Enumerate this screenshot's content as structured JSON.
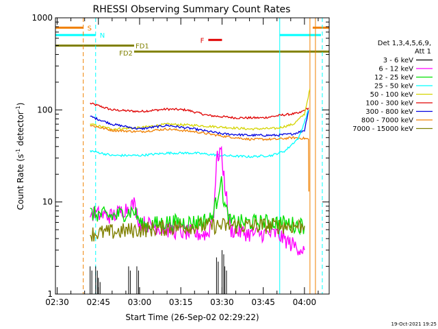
{
  "chart_data": {
    "type": "line",
    "title": "RHESSI Observing Summary Count Rates",
    "xlabel": "Start Time (26-Sep-02 02:29:22)",
    "ylabel_main": "Count Rate (s",
    "ylabel_sup1": "-1",
    "ylabel_mid": " detector",
    "ylabel_sup2": "-1",
    "ylabel_end": ")",
    "yscale": "log",
    "ylim": [
      1,
      1000
    ],
    "xlim_min": [
      149.37,
      249
    ],
    "y_ticks": [
      {
        "v": 1,
        "label": "1"
      },
      {
        "v": 10,
        "label": "10"
      },
      {
        "v": 100,
        "label": "100"
      },
      {
        "v": 1000,
        "label": "1000"
      }
    ],
    "x_ticks": [
      {
        "v": 150,
        "label": "02:30"
      },
      {
        "v": 165,
        "label": "02:45"
      },
      {
        "v": 180,
        "label": "03:00"
      },
      {
        "v": 195,
        "label": "03:15"
      },
      {
        "v": 210,
        "label": "03:30"
      },
      {
        "v": 225,
        "label": "03:45"
      },
      {
        "v": 240,
        "label": "04:00"
      }
    ],
    "legend": {
      "placement": "right",
      "header1": "Det 1,3,4,5,6,9,",
      "header2": "Att 1",
      "entries": [
        {
          "label": "3 - 6 keV",
          "color": "#000000"
        },
        {
          "label": "6 - 12 keV",
          "color": "#ff00ff"
        },
        {
          "label": "12 - 25 keV",
          "color": "#00e000"
        },
        {
          "label": "25 - 50 keV",
          "color": "#00ffff"
        },
        {
          "label": "50 - 100 keV",
          "color": "#d4d400"
        },
        {
          "label": "100 - 300 keV",
          "color": "#e00000"
        },
        {
          "label": "300 - 800 keV",
          "color": "#0000e0"
        },
        {
          "label": "800 - 7000 keV",
          "color": "#f08000"
        },
        {
          "label": "7000 - 15000 keV",
          "color": "#808000"
        }
      ]
    },
    "flags": [
      {
        "label": "S",
        "color": "#f08000",
        "t0": 149.5,
        "t1": 159.5,
        "y": 782
      },
      {
        "label": "N",
        "color": "#00ffff",
        "t0": 149.5,
        "t1": 164,
        "y": 650
      },
      {
        "label": "FD1",
        "color": "#808000",
        "t0": 149.5,
        "t1": 178,
        "y": 500
      },
      {
        "label": "FD2",
        "color": "#808000",
        "t0": 178,
        "t1": 249,
        "y": 430
      },
      {
        "label": "F",
        "color": "#e00000",
        "t0": 205,
        "t1": 210,
        "y": 575
      },
      {
        "label": "",
        "color": "#00ffff",
        "t0": 231,
        "t1": 246,
        "y": 650
      },
      {
        "label": "",
        "color": "#f08000",
        "t0": 243,
        "t1": 249,
        "y": 782
      }
    ],
    "vlines": [
      {
        "t": 159.5,
        "color": "#f08000",
        "dashed": true
      },
      {
        "t": 164,
        "color": "#00ffff",
        "dashed": true
      },
      {
        "t": 231,
        "color": "#00ffff",
        "dashed": false
      },
      {
        "t": 242,
        "color": "#f08000",
        "dashed": false
      },
      {
        "t": 244,
        "color": "#f08000",
        "dashed": false
      },
      {
        "t": 246.5,
        "color": "#00ffff",
        "dashed": true
      }
    ],
    "series": [
      {
        "name": "100 - 300 keV",
        "color": "#e00000",
        "t": [
          162,
          170,
          180,
          190,
          197,
          205,
          215,
          225,
          232,
          238,
          241.5
        ],
        "v": [
          118,
          100,
          96,
          102,
          100,
          87,
          82,
          82,
          88,
          92,
          105
        ]
      },
      {
        "name": "50 - 100 keV",
        "color": "#d4d400",
        "t": [
          162,
          170,
          180,
          190,
          200,
          210,
          220,
          230,
          236,
          240,
          242
        ],
        "v": [
          70,
          62,
          64,
          70,
          68,
          65,
          62,
          63,
          70,
          90,
          170
        ]
      },
      {
        "name": "300 - 800 keV",
        "color": "#0000e0",
        "t": [
          162,
          170,
          180,
          190,
          200,
          210,
          220,
          230,
          236,
          240,
          241.5
        ],
        "v": [
          85,
          70,
          62,
          68,
          62,
          55,
          53,
          53,
          55,
          60,
          100
        ]
      },
      {
        "name": "800 - 7000 keV",
        "color": "#f08000",
        "t": [
          162,
          170,
          180,
          190,
          200,
          210,
          220,
          230,
          236,
          240,
          241.5,
          241.6
        ],
        "v": [
          68,
          60,
          58,
          62,
          58,
          52,
          48,
          48,
          50,
          49,
          48,
          13
        ]
      },
      {
        "name": "25 - 50 keV",
        "color": "#00ffff",
        "t": [
          162,
          170,
          180,
          190,
          200,
          210,
          220,
          228,
          233,
          238,
          241.5
        ],
        "v": [
          36,
          32,
          32,
          34,
          34,
          32,
          31,
          32,
          36,
          50,
          100
        ]
      },
      {
        "name": "6 - 12 keV",
        "color": "#ff00ff",
        "t": [
          162,
          170,
          175,
          178,
          180,
          190,
          200,
          205,
          207,
          208,
          209.5,
          211,
          213,
          220,
          230,
          235,
          240
        ],
        "v": [
          7.5,
          7,
          8.5,
          9.5,
          6,
          5,
          4.5,
          4.5,
          8,
          28,
          38,
          16,
          5,
          4.5,
          4.5,
          3.5,
          3
        ]
      },
      {
        "name": "12 - 25 keV",
        "color": "#00e000",
        "t": [
          162,
          170,
          178,
          181,
          190,
          200,
          206,
          208,
          209.5,
          211,
          213,
          220,
          230,
          240
        ],
        "v": [
          7.5,
          7,
          8,
          5.5,
          6,
          6,
          6.5,
          10,
          18,
          9,
          6,
          6,
          6,
          5.5
        ]
      },
      {
        "name": "7000 - 15000 keV",
        "color": "#808000",
        "t": [
          162,
          180,
          200,
          220,
          240
        ],
        "v": [
          4.5,
          5,
          5.5,
          5.5,
          5.5
        ]
      },
      {
        "name": "3 - 6 keV",
        "color": "#000000",
        "t": [
          162,
          164,
          165,
          176,
          179,
          208,
          210,
          211
        ],
        "v": [
          2,
          2,
          1.5,
          2,
          2,
          2.5,
          3,
          2
        ]
      }
    ],
    "timestamp": "19-Oct-2021 19:25"
  }
}
